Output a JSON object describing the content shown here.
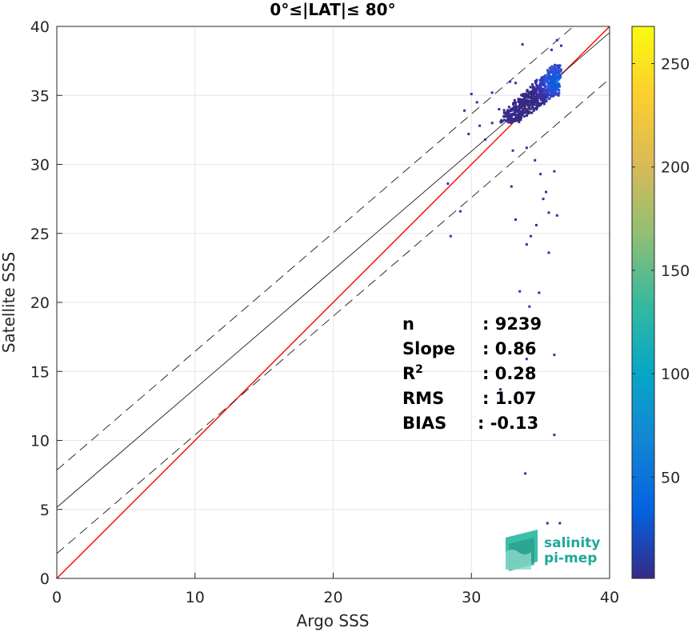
{
  "chart_data": {
    "type": "heatmap",
    "title": "0°≤|LAT|≤ 80°",
    "xlabel": "Argo SSS",
    "ylabel": "Satellite SSS",
    "xlim": [
      0,
      40
    ],
    "ylim": [
      0,
      40
    ],
    "xticks": [
      0,
      10,
      20,
      30,
      40
    ],
    "yticks": [
      0,
      5,
      10,
      15,
      20,
      25,
      30,
      35,
      40
    ],
    "grid": true,
    "lines": [
      {
        "name": "1:1",
        "slope": 1.0,
        "intercept": 0.0,
        "color": "#ff0000",
        "style": "solid"
      },
      {
        "name": "fit",
        "slope": 0.86,
        "intercept": 5.15,
        "color": "#000000",
        "style": "solid"
      },
      {
        "name": "fit+",
        "slope": 0.86,
        "intercept": 7.85,
        "color": "#000000",
        "style": "dashed"
      },
      {
        "name": "fit-",
        "slope": 0.86,
        "intercept": 1.8,
        "color": "#000000",
        "style": "dashed"
      }
    ],
    "density_core": {
      "x_range": [
        32.0,
        36.6
      ],
      "y_range": [
        33.0,
        37.2
      ],
      "peak": [
        36.2,
        36.0
      ]
    },
    "outliers": [
      [
        29.5,
        33.9
      ],
      [
        29.8,
        32.2
      ],
      [
        30.4,
        34.5
      ],
      [
        30.6,
        32.8
      ],
      [
        31.0,
        31.8
      ],
      [
        31.5,
        35.2
      ],
      [
        32.0,
        34.0
      ],
      [
        32.5,
        33.6
      ],
      [
        33.0,
        31.0
      ],
      [
        33.2,
        35.9
      ],
      [
        34.0,
        31.2
      ],
      [
        34.6,
        30.3
      ],
      [
        35.0,
        29.3
      ],
      [
        35.4,
        28.0
      ],
      [
        36.0,
        29.5
      ],
      [
        35.2,
        27.5
      ],
      [
        34.3,
        24.8
      ],
      [
        34.0,
        24.2
      ],
      [
        34.7,
        25.6
      ],
      [
        36.2,
        26.3
      ],
      [
        35.6,
        26.5
      ],
      [
        33.2,
        26.0
      ],
      [
        32.9,
        28.4
      ],
      [
        28.3,
        28.6
      ],
      [
        28.5,
        24.8
      ],
      [
        29.2,
        26.6
      ],
      [
        33.5,
        20.8
      ],
      [
        34.2,
        19.7
      ],
      [
        34.9,
        20.7
      ],
      [
        36.0,
        16.2
      ],
      [
        34.0,
        15.9
      ],
      [
        36.0,
        10.4
      ],
      [
        33.9,
        7.6
      ],
      [
        35.5,
        4.0
      ],
      [
        36.4,
        4.0
      ],
      [
        32.1,
        13.7
      ],
      [
        35.6,
        23.6
      ],
      [
        33.7,
        38.7
      ],
      [
        35.8,
        38.3
      ],
      [
        36.2,
        39.0
      ],
      [
        36.5,
        38.6
      ],
      [
        31.5,
        33.0
      ],
      [
        30.0,
        35.1
      ],
      [
        32.8,
        36.0
      ],
      [
        36.3,
        35.0
      ]
    ],
    "colorbar": {
      "min": 1,
      "max": 268,
      "ticks": [
        50,
        100,
        150,
        200,
        250
      ],
      "colormap": "parula",
      "colors": [
        "#352a87",
        "#0363e1",
        "#1485d4",
        "#06a7c6",
        "#38b99e",
        "#92bf73",
        "#d9ba56",
        "#fcce2e",
        "#f9fb0e"
      ]
    },
    "stats": [
      {
        "label": "n",
        "value": ": 9239"
      },
      {
        "label": "Slope",
        "value": ": 0.86"
      },
      {
        "label": "R",
        "sup": "2",
        "value": ": 0.28"
      },
      {
        "label": "RMS",
        "value": ": 1.07"
      },
      {
        "label": "BIAS",
        "value": ": -0.13"
      }
    ],
    "logo": {
      "line1": "salinity",
      "line2": "pi-mep"
    }
  }
}
